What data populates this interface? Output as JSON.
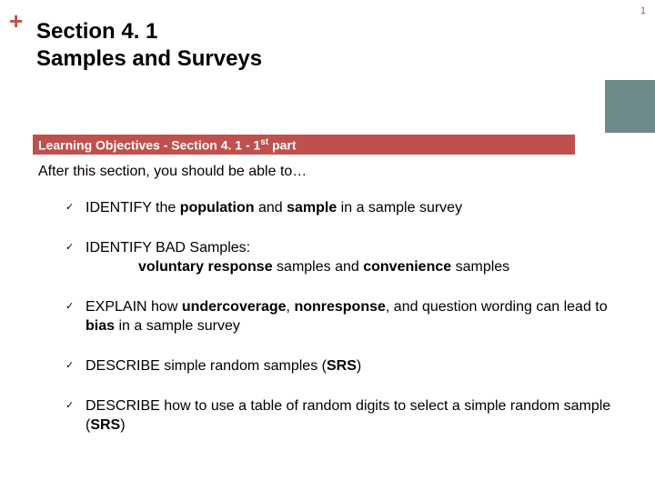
{
  "pageNumber": "1",
  "plusSymbol": "+",
  "accent": {
    "color": "#6e8a8a"
  },
  "title": {
    "line1": "Section 4. 1",
    "line2": "Samples and Surveys"
  },
  "objectivesBar": {
    "prefix": "Learning Objectives -  Section 4. 1 - 1",
    "sup": "st",
    "suffix": " part",
    "bg": "#c0504d"
  },
  "intro": "After this section, you should be able to…",
  "checkmark": "✓",
  "items": [
    {
      "segments": [
        {
          "t": "IDENTIFY the ",
          "b": false
        },
        {
          "t": "population",
          "b": true
        },
        {
          "t": " and ",
          "b": false
        },
        {
          "t": "sample",
          "b": true
        },
        {
          "t": " in a sample survey",
          "b": false
        }
      ]
    },
    {
      "segments": [
        {
          "t": "IDENTIFY BAD Samples:",
          "b": false
        }
      ],
      "indentSegments": [
        {
          "t": "voluntary response",
          "b": true
        },
        {
          "t": " samples and ",
          "b": false
        },
        {
          "t": "convenience",
          "b": true
        },
        {
          "t": " samples",
          "b": false
        }
      ]
    },
    {
      "segments": [
        {
          "t": "EXPLAIN how ",
          "b": false
        },
        {
          "t": "undercoverage",
          "b": true
        },
        {
          "t": ", ",
          "b": false
        },
        {
          "t": "nonresponse",
          "b": true
        },
        {
          "t": ", and question wording can lead to ",
          "b": false
        },
        {
          "t": "bias",
          "b": true
        },
        {
          "t": " in a sample survey",
          "b": false
        }
      ]
    },
    {
      "segments": [
        {
          "t": "DESCRIBE simple random samples (",
          "b": false
        },
        {
          "t": "SRS",
          "b": true
        },
        {
          "t": ")",
          "b": false
        }
      ]
    },
    {
      "segments": [
        {
          "t": "DESCRIBE how to use a table of random digits to select a simple random sample (",
          "b": false
        },
        {
          "t": "SRS",
          "b": true
        },
        {
          "t": ")",
          "b": false
        }
      ]
    }
  ]
}
